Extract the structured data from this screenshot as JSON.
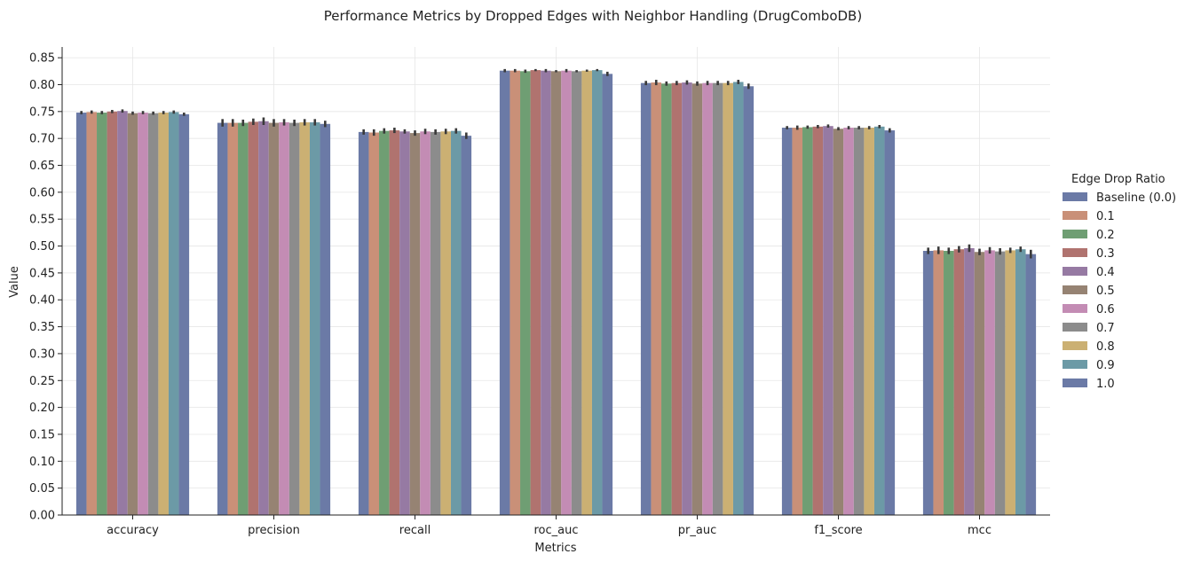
{
  "chart_data": {
    "type": "bar",
    "title": "Performance Metrics by Dropped Edges with Neighbor Handling (DrugComboDB)",
    "xlabel": "Metrics",
    "ylabel": "Value",
    "ylim": [
      0,
      0.87
    ],
    "y_ticks": [
      "0.00",
      "0.05",
      "0.10",
      "0.15",
      "0.20",
      "0.25",
      "0.30",
      "0.35",
      "0.40",
      "0.45",
      "0.50",
      "0.55",
      "0.60",
      "0.65",
      "0.70",
      "0.75",
      "0.80",
      "0.85"
    ],
    "grid": true,
    "legend_title": "Edge Drop Ratio",
    "legend_position": "right",
    "categories": [
      "accuracy",
      "precision",
      "recall",
      "roc_auc",
      "pr_auc",
      "f1_score",
      "mcc"
    ],
    "series": [
      {
        "name": "Baseline (0.0)",
        "color": "#6b7aa6",
        "values": [
          0.748,
          0.729,
          0.712,
          0.826,
          0.803,
          0.72,
          0.491
        ],
        "err": [
          0.003,
          0.007,
          0.005,
          0.003,
          0.004,
          0.003,
          0.006
        ]
      },
      {
        "name": "0.1",
        "color": "#c99078",
        "values": [
          0.749,
          0.729,
          0.711,
          0.826,
          0.804,
          0.72,
          0.492
        ],
        "err": [
          0.003,
          0.007,
          0.006,
          0.003,
          0.005,
          0.004,
          0.007
        ]
      },
      {
        "name": "0.2",
        "color": "#6f9e73",
        "values": [
          0.748,
          0.729,
          0.714,
          0.825,
          0.802,
          0.721,
          0.491
        ],
        "err": [
          0.003,
          0.006,
          0.005,
          0.003,
          0.004,
          0.003,
          0.006
        ]
      },
      {
        "name": "0.3",
        "color": "#b0736f",
        "values": [
          0.75,
          0.731,
          0.715,
          0.827,
          0.803,
          0.722,
          0.494
        ],
        "err": [
          0.003,
          0.006,
          0.005,
          0.002,
          0.004,
          0.003,
          0.006
        ]
      },
      {
        "name": "0.4",
        "color": "#967aa3",
        "values": [
          0.751,
          0.732,
          0.713,
          0.826,
          0.804,
          0.723,
          0.496
        ],
        "err": [
          0.003,
          0.007,
          0.004,
          0.003,
          0.004,
          0.003,
          0.007
        ]
      },
      {
        "name": "0.5",
        "color": "#968373",
        "values": [
          0.747,
          0.729,
          0.71,
          0.825,
          0.802,
          0.718,
          0.489
        ],
        "err": [
          0.003,
          0.007,
          0.005,
          0.002,
          0.004,
          0.003,
          0.006
        ]
      },
      {
        "name": "0.6",
        "color": "#c38cb4",
        "values": [
          0.748,
          0.73,
          0.713,
          0.826,
          0.803,
          0.72,
          0.492
        ],
        "err": [
          0.003,
          0.006,
          0.005,
          0.003,
          0.004,
          0.003,
          0.006
        ]
      },
      {
        "name": "0.7",
        "color": "#8c8c8c",
        "values": [
          0.747,
          0.729,
          0.712,
          0.825,
          0.803,
          0.72,
          0.49
        ],
        "err": [
          0.003,
          0.006,
          0.005,
          0.002,
          0.004,
          0.003,
          0.006
        ]
      },
      {
        "name": "0.8",
        "color": "#cbb073",
        "values": [
          0.748,
          0.73,
          0.713,
          0.826,
          0.803,
          0.72,
          0.492
        ],
        "err": [
          0.003,
          0.006,
          0.005,
          0.002,
          0.004,
          0.003,
          0.005
        ]
      },
      {
        "name": "0.9",
        "color": "#6c9aa6",
        "values": [
          0.749,
          0.73,
          0.714,
          0.827,
          0.805,
          0.722,
          0.494
        ],
        "err": [
          0.003,
          0.006,
          0.005,
          0.002,
          0.004,
          0.003,
          0.005
        ]
      },
      {
        "name": "1.0",
        "color": "#6b7aa6",
        "values": [
          0.745,
          0.727,
          0.705,
          0.82,
          0.797,
          0.715,
          0.485
        ],
        "err": [
          0.003,
          0.006,
          0.006,
          0.004,
          0.005,
          0.004,
          0.008
        ]
      }
    ]
  }
}
